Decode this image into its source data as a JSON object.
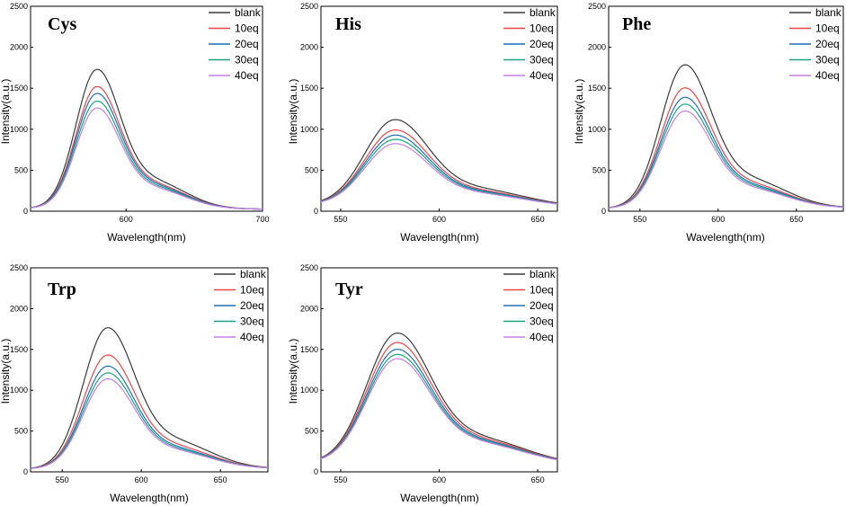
{
  "figure": {
    "title": ""
  },
  "chart_data": [
    {
      "type": "line",
      "panel": "Cys",
      "xlabel": "Wavelength(nm)",
      "ylabel": "Intensity(a.u.)",
      "xlim": [
        530,
        700
      ],
      "ylim": [
        0,
        2500
      ],
      "xticks": [
        600,
        700
      ],
      "yticks": [
        0,
        500,
        1000,
        1500,
        2000,
        2500
      ],
      "peak_x": 578,
      "peak_y": [
        1660,
        1460,
        1380,
        1290,
        1210
      ],
      "base_y": 35,
      "tail_y": 25,
      "legend": [
        "blank",
        "10eq",
        "20eq",
        "30eq",
        "40eq"
      ]
    },
    {
      "type": "line",
      "panel": "His",
      "xlabel": "Wavelength(nm)",
      "ylabel": "Intensity(a.u.)",
      "xlim": [
        540,
        660
      ],
      "ylim": [
        0,
        2500
      ],
      "xticks": [
        550,
        600,
        650
      ],
      "yticks": [
        0,
        500,
        1000,
        1500,
        2000,
        2500
      ],
      "peak_x": 577,
      "peak_y": [
        1080,
        960,
        900,
        850,
        800
      ],
      "base_y": 80,
      "tail_y": 55,
      "legend": [
        "blank",
        "10eq",
        "20eq",
        "30eq",
        "40eq"
      ]
    },
    {
      "type": "line",
      "panel": "Phe",
      "xlabel": "Wavelength(nm)",
      "ylabel": "Intensity(a.u.)",
      "xlim": [
        530,
        680
      ],
      "ylim": [
        0,
        2500
      ],
      "xticks": [
        550,
        600,
        650
      ],
      "yticks": [
        0,
        500,
        1000,
        1500,
        2000,
        2500
      ],
      "peak_x": 578,
      "peak_y": [
        1710,
        1440,
        1330,
        1250,
        1170
      ],
      "base_y": 35,
      "tail_y": 40,
      "legend": [
        "blank",
        "10eq",
        "20eq",
        "30eq",
        "40eq"
      ]
    },
    {
      "type": "line",
      "panel": "Trp",
      "xlabel": "Wavelength(nm)",
      "ylabel": "Intensity(a.u.)",
      "xlim": [
        530,
        680
      ],
      "ylim": [
        0,
        2500
      ],
      "xticks": [
        550,
        600,
        650
      ],
      "yticks": [
        0,
        500,
        1000,
        1500,
        2000,
        2500
      ],
      "peak_x": 578,
      "peak_y": [
        1690,
        1370,
        1240,
        1160,
        1090
      ],
      "base_y": 35,
      "tail_y": 40,
      "legend": [
        "blank",
        "10eq",
        "20eq",
        "30eq",
        "40eq"
      ]
    },
    {
      "type": "line",
      "panel": "Tyr",
      "xlabel": "Wavelength(nm)",
      "ylabel": "Intensity(a.u.)",
      "xlim": [
        540,
        660
      ],
      "ylim": [
        0,
        2500
      ],
      "xticks": [
        550,
        600,
        650
      ],
      "yticks": [
        0,
        500,
        1000,
        1500,
        2000,
        2500
      ],
      "peak_x": 578,
      "peak_y": [
        1640,
        1530,
        1450,
        1390,
        1340
      ],
      "base_y": 110,
      "tail_y": 85,
      "legend": [
        "blank",
        "10eq",
        "20eq",
        "30eq",
        "40eq"
      ]
    }
  ],
  "series_colors": [
    "#3b3b3b",
    "#ee4444",
    "#1f6eb8",
    "#17a584",
    "#c77ee6"
  ]
}
